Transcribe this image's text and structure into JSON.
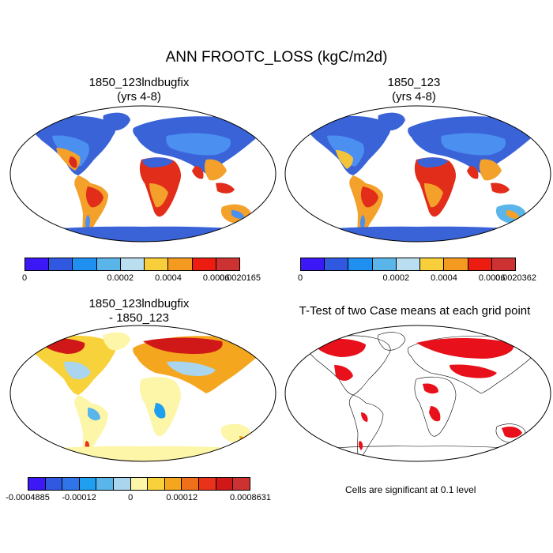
{
  "title": "ANN FROOTC_LOSS (kgC/m2d)",
  "panels": {
    "p1": {
      "line1": "1850_123lndbugfix",
      "line2": "(yrs 4-8)"
    },
    "p2": {
      "line1": "1850_123",
      "line2": "(yrs 4-8)"
    },
    "p3": {
      "line1": "1850_123lndbugfix",
      "line2": "- 1850_123"
    },
    "p4": {
      "line1": "T-Test of two Case means at each grid point"
    }
  },
  "colorbars": {
    "cb1": {
      "colors": [
        "#3b18f5",
        "#3058e0",
        "#1f8ff0",
        "#5ab5ea",
        "#b9def0",
        "#f8cf3a",
        "#f49a20",
        "#ec1c10",
        "#cc3232"
      ],
      "labels": [
        "0",
        "0.0002",
        "0.0004",
        "0.0006",
        "0.0020165"
      ]
    },
    "cb2": {
      "colors": [
        "#3b18f5",
        "#3058e0",
        "#1f8ff0",
        "#5ab5ea",
        "#b9def0",
        "#f8cf3a",
        "#f49a20",
        "#ec1c10",
        "#cc3232"
      ],
      "labels": [
        "0",
        "0.0002",
        "0.0004",
        "0.0006",
        "0.0020362"
      ]
    },
    "cb3": {
      "colors": [
        "#3b18f5",
        "#3058e0",
        "#2f74e8",
        "#1f9ff0",
        "#5ab5ea",
        "#a9d5ef",
        "#fdf5a8",
        "#f8d23a",
        "#f4a61e",
        "#f0701a",
        "#e8321a",
        "#d01818",
        "#cc3232"
      ],
      "labels": [
        "-0.0004885",
        "-0.00012",
        "0",
        "0.00012",
        "0.0008631"
      ]
    }
  },
  "note": "Cells are significant at 0.1 level"
}
